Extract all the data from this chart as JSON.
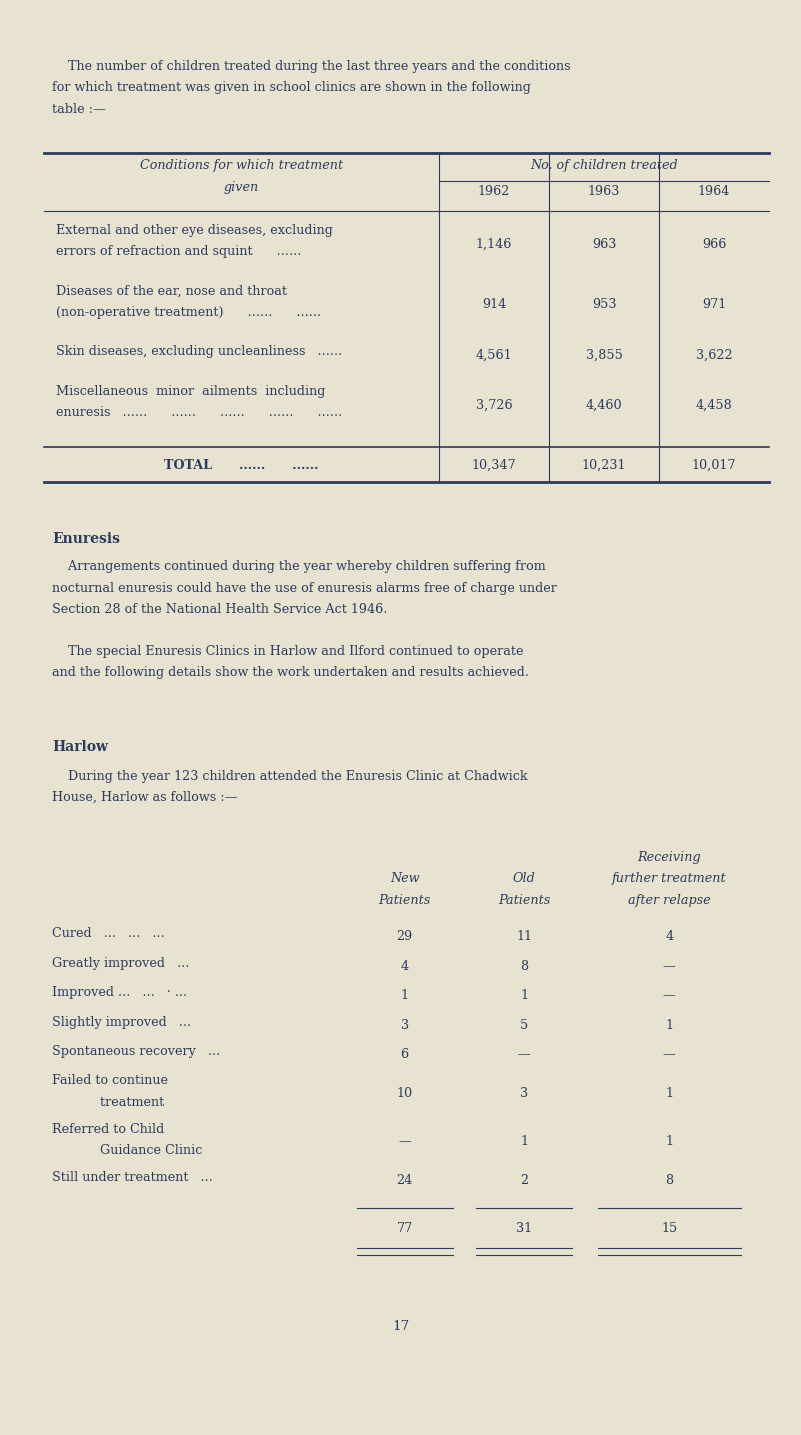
{
  "bg_color": "#e8e3d0",
  "text_color": "#2d3a5c",
  "page_width": 8.01,
  "page_height": 14.35,
  "intro_text": [
    "    The number of children treated during the last three years and the conditions",
    "for which treatment was given in school clinics are shown in the following",
    "table :—"
  ],
  "table1_header_left_line1": "Conditions for which treatment",
  "table1_header_left_line2": "given",
  "table1_header_main": "No. of children treated",
  "table1_years": [
    "1962",
    "1963",
    "1964"
  ],
  "table1_rows": [
    {
      "label_lines": [
        "External and other eye diseases, excluding",
        "errors of refraction and squint      ......"
      ],
      "values": [
        "1,146",
        "963",
        "966"
      ]
    },
    {
      "label_lines": [
        "Diseases of the ear, nose and throat",
        "(non-operative treatment)      ......      ......"
      ],
      "values": [
        "914",
        "953",
        "971"
      ]
    },
    {
      "label_lines": [
        "Skin diseases, excluding uncleanliness   ......"
      ],
      "values": [
        "4,561",
        "3,855",
        "3,622"
      ]
    },
    {
      "label_lines": [
        "Miscellaneous  minor  ailments  including",
        "enuresis   ......      ......      ......      ......      ......"
      ],
      "values": [
        "3,726",
        "4,460",
        "4,458"
      ]
    }
  ],
  "table1_total_label": "TOTAL      ......      ......",
  "table1_total_values": [
    "10,347",
    "10,231",
    "10,017"
  ],
  "enuresis_heading": "Enuresis",
  "enuresis_para1_lines": [
    "    Arrangements continued during the year whereby children suffering from",
    "nocturnal enuresis could have the use of enuresis alarms free of charge under",
    "Section 28 of the National Health Service Act 1946."
  ],
  "enuresis_para2_lines": [
    "    The special Enuresis Clinics in Harlow and Ilford continued to operate",
    "and the following details show the work undertaken and results achieved."
  ],
  "harlow_heading": "Harlow",
  "harlow_intro_lines": [
    "    During the year 123 children attended the Enuresis Clinic at Chadwick",
    "House, Harlow as follows :—"
  ],
  "table2_col1_header": "New\nPatients",
  "table2_col2_header": "Old\nPatients",
  "table2_col3_header_lines": [
    "Receiving",
    "further treatment",
    "after relapse"
  ],
  "table2_rows": [
    {
      "label": "Cured   ...   ...   ...",
      "label2": null,
      "v1": "29",
      "v2": "11",
      "v3": "4"
    },
    {
      "label": "Greatly improved   ...",
      "label2": null,
      "v1": "4",
      "v2": "8",
      "v3": "—"
    },
    {
      "label": "Improved ...   ...   · ...",
      "label2": null,
      "v1": "1",
      "v2": "1",
      "v3": "—"
    },
    {
      "label": "Slightly improved   ...",
      "label2": null,
      "v1": "3",
      "v2": "5",
      "v3": "1"
    },
    {
      "label": "Spontaneous recovery   ...",
      "label2": null,
      "v1": "6",
      "v2": "—",
      "v3": "—"
    },
    {
      "label": "Failed to continue",
      "label2": "            treatment",
      "v1": "10",
      "v2": "3",
      "v3": "1"
    },
    {
      "label": "Referred to Child",
      "label2": "            Guidance Clinic",
      "v1": "—",
      "v2": "1",
      "v3": "1"
    },
    {
      "label": "Still under treatment   ...",
      "label2": null,
      "v1": "24",
      "v2": "2",
      "v3": "8"
    }
  ],
  "table2_totals": [
    "77",
    "31",
    "15"
  ],
  "page_number": "17"
}
